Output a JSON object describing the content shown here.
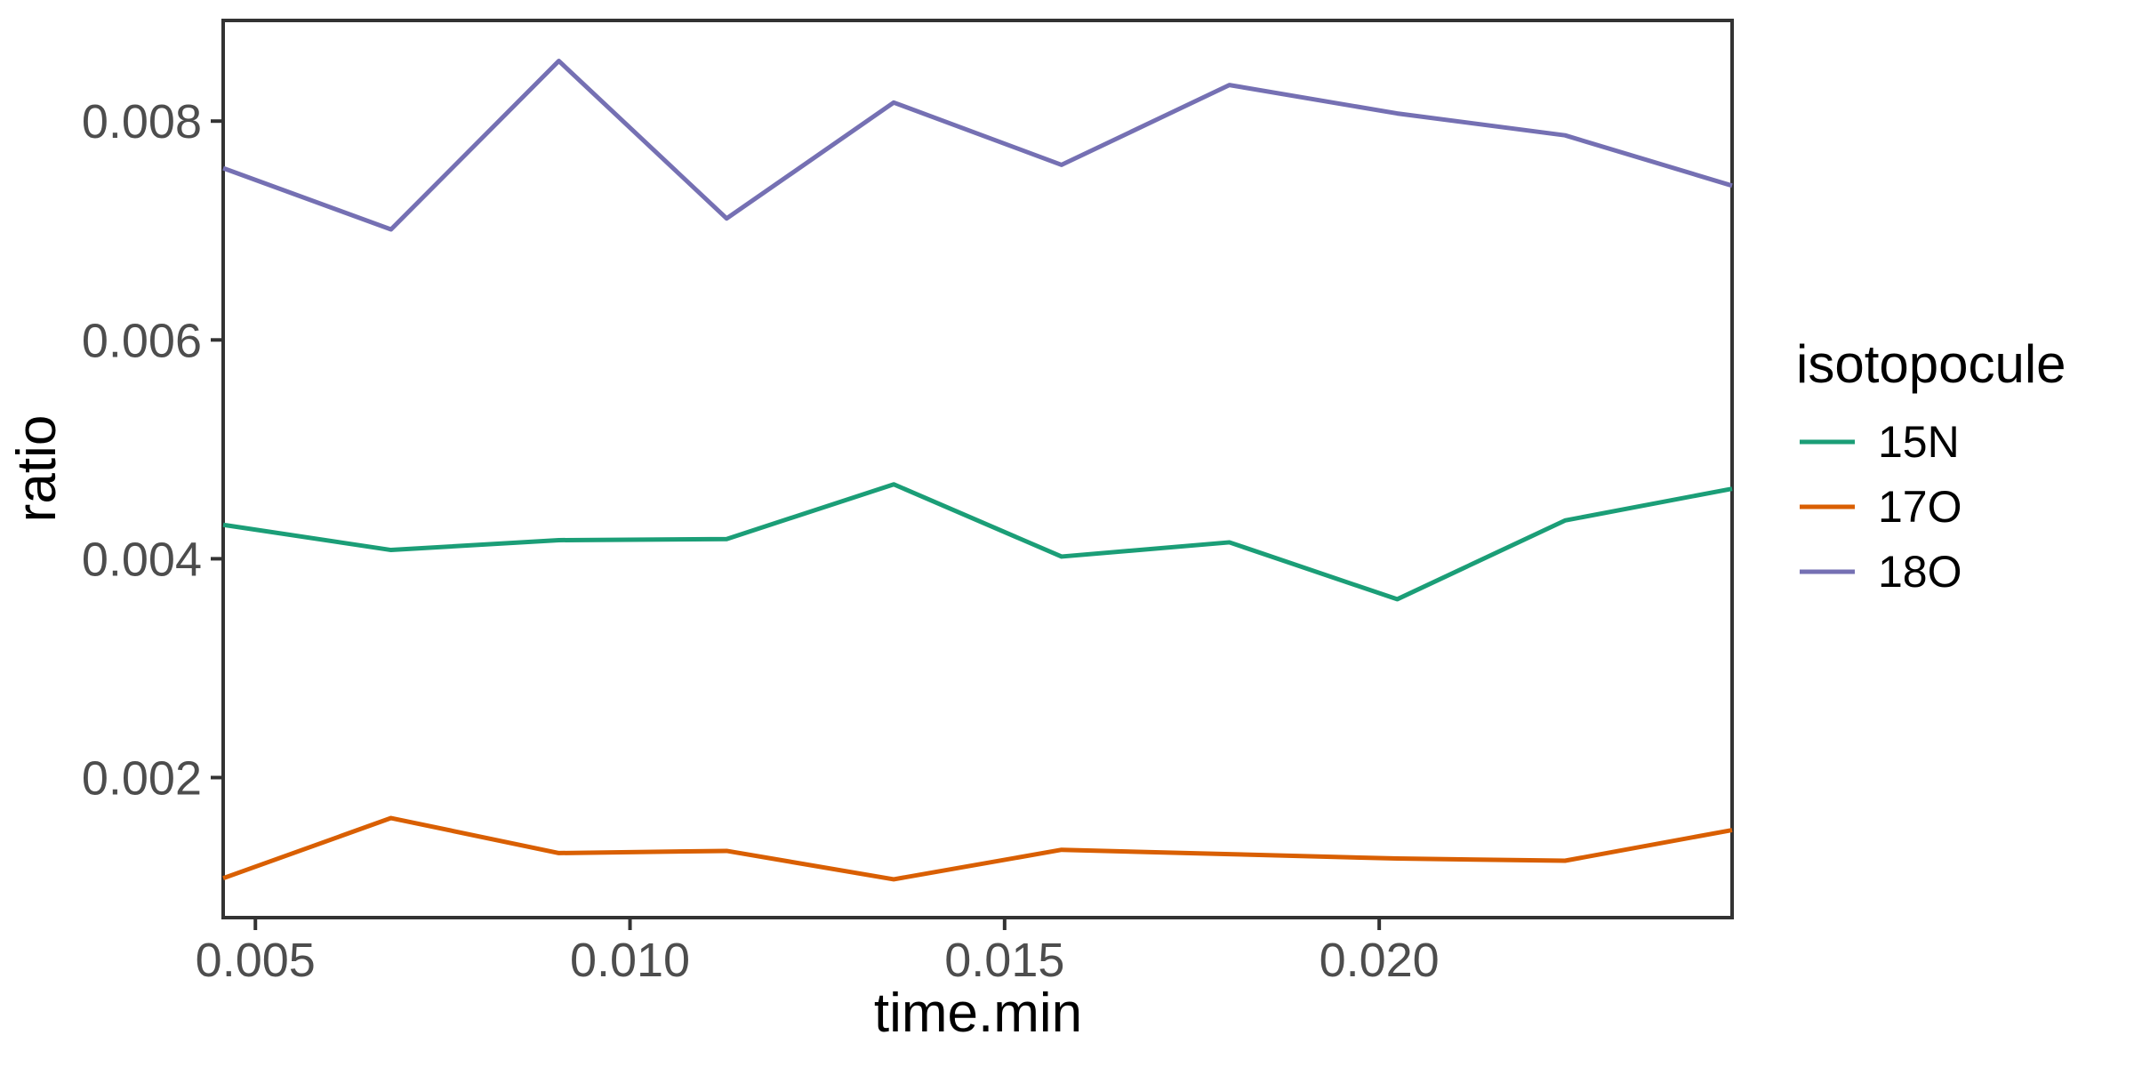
{
  "chart_data": {
    "type": "line",
    "title": "",
    "xlabel": "time.min",
    "ylabel": "ratio",
    "legend_title": "isotopocule",
    "legend_position": "right",
    "grid": false,
    "x": [
      0.00457,
      0.00681,
      0.00905,
      0.01129,
      0.01352,
      0.01576,
      0.018,
      0.02024,
      0.02248,
      0.02471
    ],
    "series": [
      {
        "name": "15N",
        "color": "#1B9E77",
        "values": [
          0.00431,
          0.00408,
          0.00417,
          0.00418,
          0.00468,
          0.00402,
          0.00415,
          0.00363,
          0.00435,
          0.00464
        ]
      },
      {
        "name": "17O",
        "color": "#D95F02",
        "values": [
          0.00108,
          0.00163,
          0.00131,
          0.00133,
          0.00107,
          0.00134,
          0.0013,
          0.00126,
          0.00124,
          0.00152
        ]
      },
      {
        "name": "18O",
        "color": "#7570B3",
        "values": [
          0.00757,
          0.00701,
          0.00855,
          0.00711,
          0.00817,
          0.0076,
          0.00833,
          0.00807,
          0.00787,
          0.00741
        ]
      }
    ],
    "x_ticks": {
      "values": [
        0.005,
        0.01,
        0.015,
        0.02
      ],
      "labels": [
        "0.005",
        "0.010",
        "0.015",
        "0.020"
      ]
    },
    "y_ticks": {
      "values": [
        0.002,
        0.004,
        0.006,
        0.008
      ],
      "labels": [
        "0.002",
        "0.004",
        "0.006",
        "0.008"
      ]
    },
    "xlim": [
      0.00457,
      0.02471
    ],
    "ylim": [
      0.00072,
      0.00892
    ]
  },
  "style": {
    "background": "#ffffff",
    "panel_border_color": "#333333",
    "tick_color": "#333333",
    "tick_label_color": "#4d4d4d",
    "title_text_color": "#000000",
    "legend_text_color": "#000000",
    "line_width": 5
  }
}
